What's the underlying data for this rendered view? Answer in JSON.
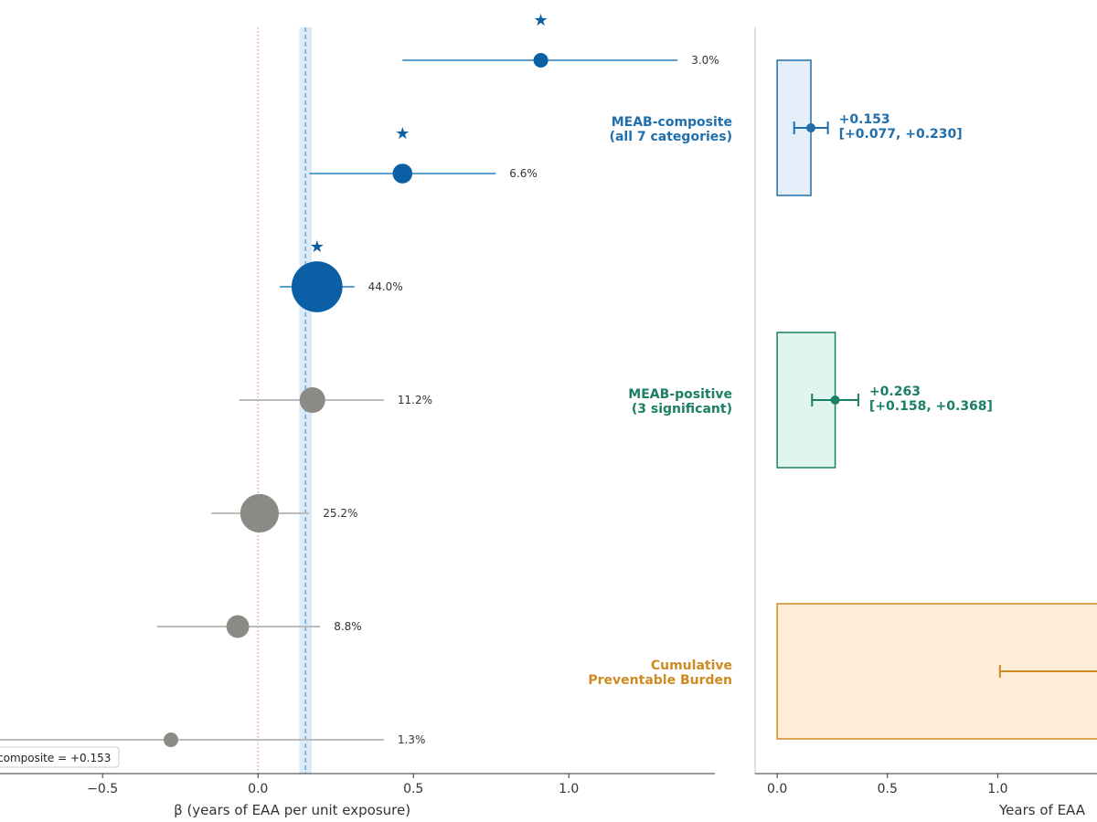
{
  "chart_data": [
    {
      "type": "scatter",
      "title": "",
      "xlabel": "β (years of EAA per unit exposure)",
      "ylabel": "",
      "xlim": [
        -0.83,
        1.47
      ],
      "xticks": [
        -0.5,
        0.0,
        0.5,
        1.0
      ],
      "xtick_labels": [
        "−0.5",
        "0.0",
        "0.5",
        "1.0"
      ],
      "reference_lines": {
        "null_effect": 0.0,
        "composite": 0.153,
        "composite_band": [
          0.133,
          0.173
        ]
      },
      "legend_text": "composite = +0.153",
      "legend_position": "bottom-left",
      "points": [
        {
          "beta": 0.91,
          "ci": [
            0.465,
            1.35
          ],
          "weight_label": "3.0%",
          "weight": 3.0,
          "significant": true,
          "group": "positive"
        },
        {
          "beta": 0.465,
          "ci": [
            0.165,
            0.765
          ],
          "weight_label": "6.6%",
          "weight": 6.6,
          "significant": true,
          "group": "positive"
        },
        {
          "beta": 0.19,
          "ci": [
            0.07,
            0.31
          ],
          "weight_label": "44.0%",
          "weight": 44.0,
          "significant": true,
          "group": "positive"
        },
        {
          "beta": 0.175,
          "ci": [
            -0.06,
            0.405
          ],
          "weight_label": "11.2%",
          "weight": 11.2,
          "significant": false,
          "group": "null"
        },
        {
          "beta": 0.005,
          "ci": [
            -0.15,
            0.165
          ],
          "weight_label": "25.2%",
          "weight": 25.2,
          "significant": false,
          "group": "null"
        },
        {
          "beta": -0.065,
          "ci": [
            -0.325,
            0.2
          ],
          "weight_label": "8.8%",
          "weight": 8.8,
          "significant": false,
          "group": "null"
        },
        {
          "beta": -0.28,
          "ci": [
            -0.9,
            0.405
          ],
          "weight_label": "1.3%",
          "weight": 1.3,
          "significant": false,
          "group": "null"
        }
      ],
      "colors": {
        "positive": "#0b5fa5",
        "positive_ci": "#5b9fd0",
        "null": "#8c8a84",
        "null_ci": "#bcbcbc",
        "null_line": "#e57373",
        "composite_line": "#5b9fd0",
        "composite_band": "#dbeaf7"
      }
    },
    {
      "type": "bar",
      "orientation": "horizontal",
      "xlabel": "Years of EAA",
      "xlim": [
        -0.1,
        1.45
      ],
      "xticks": [
        0.0,
        0.5,
        1.0
      ],
      "xtick_labels": [
        "0.0",
        "0.5",
        "1.0"
      ],
      "bars": [
        {
          "label_line1": "MEAB-composite",
          "label_line2": "(all 7 categories)",
          "value": 0.153,
          "ci": [
            0.077,
            0.23
          ],
          "value_label": "+0.153",
          "ci_label": "[+0.077, +0.230]",
          "color": "#1f6fad",
          "fill": "#e4effa"
        },
        {
          "label_line1": "MEAB-positive",
          "label_line2": "(3 significant)",
          "value": 0.263,
          "ci": [
            0.158,
            0.368
          ],
          "value_label": "+0.263",
          "ci_label": "[+0.158, +0.368]",
          "color": "#1a7f64",
          "fill": "#dff5ee"
        },
        {
          "label_line1": "Cumulative",
          "label_line2": "Preventable Burden",
          "value": 1.5,
          "ci": [
            1.01,
            1.5
          ],
          "value_label": "",
          "ci_label": "",
          "color": "#d08a22",
          "fill": "#fdecd6"
        }
      ]
    }
  ]
}
